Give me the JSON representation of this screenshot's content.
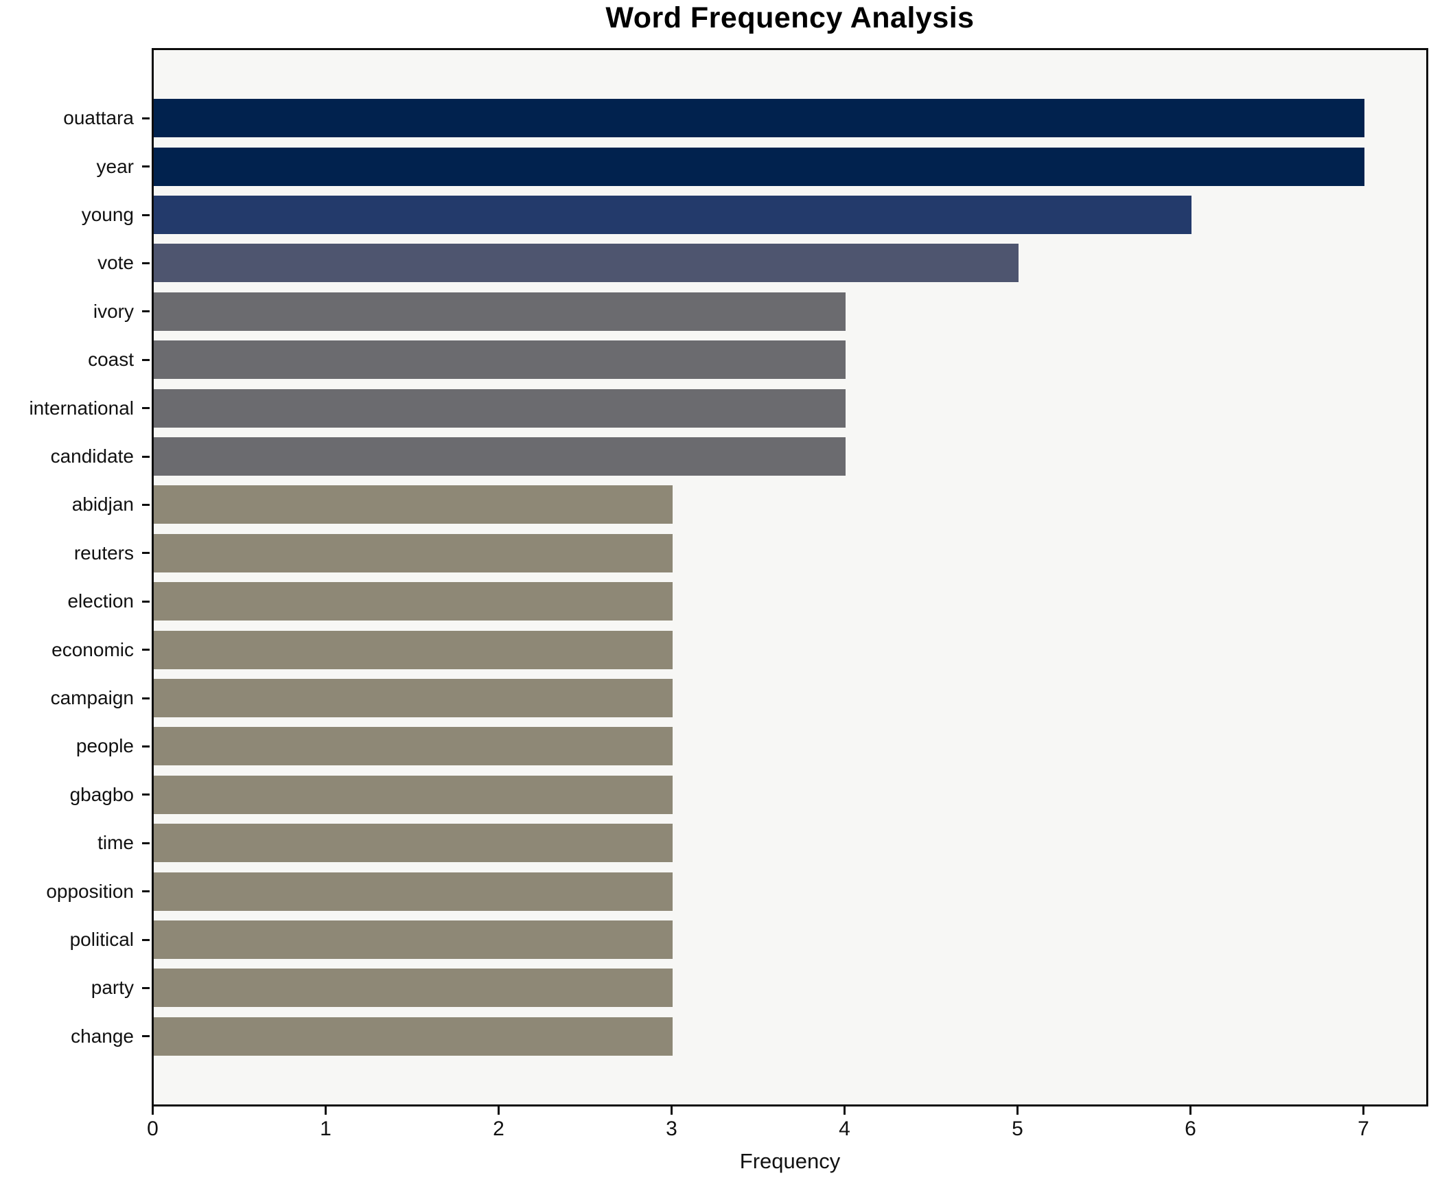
{
  "chart_data": {
    "type": "bar",
    "orientation": "horizontal",
    "title": "Word Frequency Analysis",
    "xlabel": "Frequency",
    "ylabel": "",
    "categories": [
      "ouattara",
      "year",
      "young",
      "vote",
      "ivory",
      "coast",
      "international",
      "candidate",
      "abidjan",
      "reuters",
      "election",
      "economic",
      "campaign",
      "people",
      "gbagbo",
      "time",
      "opposition",
      "political",
      "party",
      "change"
    ],
    "values": [
      7,
      7,
      6,
      5,
      4,
      4,
      4,
      4,
      3,
      3,
      3,
      3,
      3,
      3,
      3,
      3,
      3,
      3,
      3,
      3
    ],
    "bar_colors": [
      "#01224e",
      "#01224e",
      "#233a6b",
      "#4e556f",
      "#6b6b6f",
      "#6b6b6f",
      "#6b6b6f",
      "#6b6b6f",
      "#8e8876",
      "#8e8876",
      "#8e8876",
      "#8e8876",
      "#8e8876",
      "#8e8876",
      "#8e8876",
      "#8e8876",
      "#8e8876",
      "#8e8876",
      "#8e8876",
      "#8e8876"
    ],
    "colors_by_value": {
      "7": "#01224e",
      "6": "#233a6b",
      "5": "#4e556f",
      "4": "#6b6b6f",
      "3": "#8e8876"
    },
    "xticks": [
      "0",
      "1",
      "2",
      "3",
      "4",
      "5",
      "6",
      "7"
    ],
    "xlim": [
      0,
      7.35
    ],
    "grid": false,
    "legend": null,
    "plot_background": "#f7f7f5",
    "spine_color": "#0d0d0d",
    "figure_background": "#ffffff"
  }
}
